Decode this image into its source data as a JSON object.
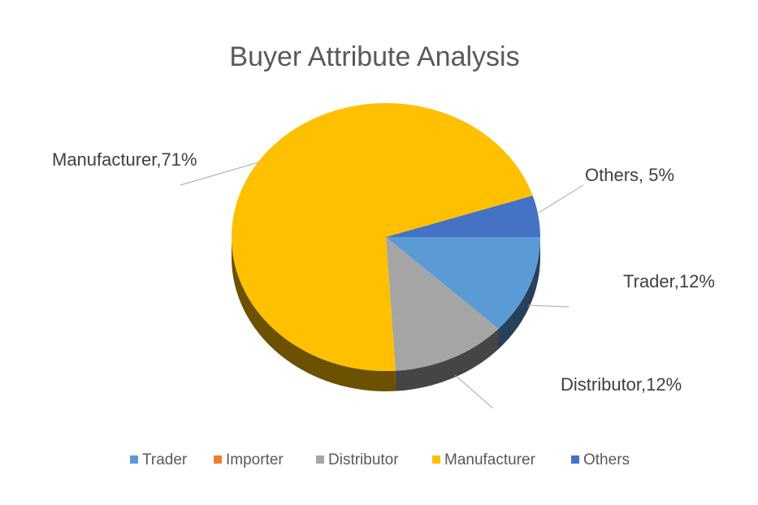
{
  "chart_data": {
    "type": "pie",
    "title": "Buyer Attribute Analysis",
    "categories": [
      "Trader",
      "Importer",
      "Distributor",
      "Manufacturer",
      "Others"
    ],
    "values": [
      12,
      0,
      12,
      71,
      5
    ],
    "value_labels": [
      "Trader,12%",
      null,
      "Distributor,12%",
      "Manufacturer,71%",
      "Others, 5%"
    ],
    "colors": [
      "#5b9bd5",
      "#ed7d31",
      "#a5a5a5",
      "#ffc000",
      "#4472c4"
    ],
    "legend": "bottom"
  }
}
